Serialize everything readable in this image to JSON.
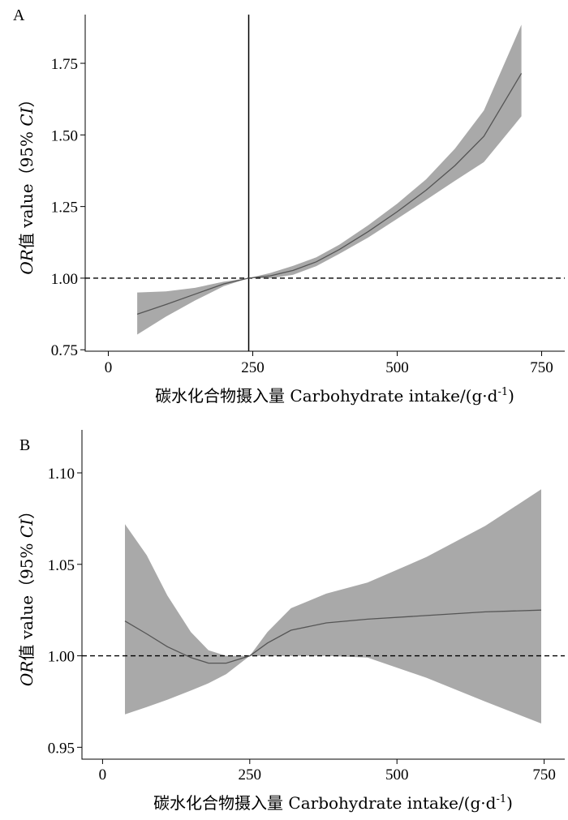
{
  "chart_data": [
    {
      "type": "line",
      "panel_label": "A",
      "xlabel": "碳水化合物摄入量 Carbohydrate intake/(g·d",
      "xlabel_sup": "-1",
      "xlabel_end": ")",
      "ylabel_italic_1": "OR",
      "ylabel_mid": "值 value（95% ",
      "ylabel_italic_2": "CI",
      "ylabel_end": "）",
      "xlim": [
        -40,
        790
      ],
      "ylim": [
        0.745,
        1.92
      ],
      "xticks": [
        0,
        250,
        500,
        750
      ],
      "yticks": [
        0.75,
        1.0,
        1.25,
        1.5,
        1.75
      ],
      "ytick_labels": [
        "0.75",
        "1.00",
        "1.25",
        "1.50",
        "1.75"
      ],
      "reference_line_y": 1.0,
      "reference_line_x": 243,
      "line_color": "#555555",
      "band_color": "#a9a9a9",
      "series": [
        {
          "x": [
            50,
            100,
            150,
            200,
            243,
            280,
            320,
            360,
            400,
            450,
            500,
            550,
            600,
            650,
            715
          ],
          "y": [
            0.874,
            0.908,
            0.944,
            0.98,
            1.0,
            1.008,
            1.027,
            1.057,
            1.1,
            1.163,
            1.232,
            1.307,
            1.393,
            1.495,
            1.715
          ],
          "lower": [
            0.803,
            0.866,
            0.922,
            0.972,
            1.0,
            0.999,
            1.012,
            1.042,
            1.085,
            1.142,
            1.207,
            1.273,
            1.34,
            1.405,
            1.565
          ],
          "upper": [
            0.95,
            0.954,
            0.966,
            0.988,
            1.0,
            1.018,
            1.043,
            1.073,
            1.117,
            1.185,
            1.26,
            1.345,
            1.452,
            1.585,
            1.885
          ]
        }
      ]
    },
    {
      "type": "line",
      "panel_label": "B",
      "xlabel": "碳水化合物摄入量 Carbohydrate intake/(g·d",
      "xlabel_sup": "-1",
      "xlabel_end": ")",
      "ylabel_italic_1": "OR",
      "ylabel_mid": "值 value（95% ",
      "ylabel_italic_2": "CI",
      "ylabel_end": "）",
      "xlim": [
        -35,
        785
      ],
      "ylim": [
        0.9435,
        1.1235
      ],
      "xticks": [
        0,
        250,
        500,
        750
      ],
      "yticks": [
        0.95,
        1.0,
        1.05,
        1.1
      ],
      "ytick_labels": [
        "0.95",
        "1.00",
        "1.05",
        "1.10"
      ],
      "reference_line_y": 1.0,
      "line_color": "#555555",
      "band_color": "#a9a9a9",
      "series": [
        {
          "x": [
            38,
            75,
            110,
            150,
            180,
            210,
            250,
            280,
            320,
            380,
            450,
            550,
            650,
            745
          ],
          "y": [
            1.019,
            1.012,
            1.005,
            0.999,
            0.996,
            0.996,
            1.0,
            1.007,
            1.014,
            1.018,
            1.02,
            1.022,
            1.024,
            1.025
          ],
          "lower": [
            0.968,
            0.972,
            0.976,
            0.981,
            0.985,
            0.99,
            1.0,
            1.0,
            1.0,
            1.0,
            0.999,
            0.988,
            0.975,
            0.963
          ],
          "upper": [
            1.072,
            1.055,
            1.033,
            1.013,
            1.003,
            1.0,
            1.0,
            1.013,
            1.026,
            1.034,
            1.04,
            1.054,
            1.071,
            1.091
          ]
        }
      ]
    }
  ]
}
